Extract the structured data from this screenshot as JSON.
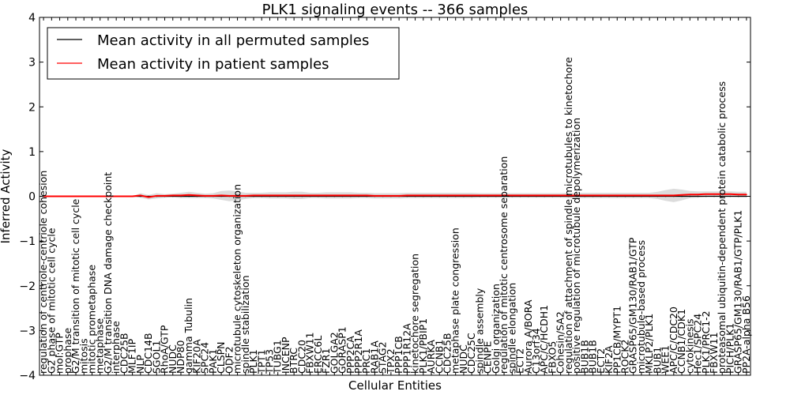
{
  "chart_data": {
    "type": "line",
    "title": "PLK1 signaling events -- 366 samples",
    "xlabel": "Cellular Entities",
    "ylabel": "Inferred Activity",
    "ylim": [
      -4,
      4
    ],
    "yticks": [
      4,
      3,
      2,
      1,
      0,
      -1,
      -2,
      -3,
      -4
    ],
    "grid": false,
    "legend": {
      "position": "top-left",
      "entries": [
        {
          "label": "Mean activity in all permuted samples",
          "color": "#000000"
        },
        {
          "label": "Mean activity in patient samples",
          "color": "#ff0000"
        }
      ]
    },
    "categories": [
      "regulation of centriole-centriole cohesion",
      "G2 phase of mitotic cell cycle",
      "mol:GTP",
      "prophase",
      "G2/M transition of mitotic cell cycle",
      "mitosis",
      "mitotic prometaphase",
      "metaphase",
      "G2/M transition DNA damage checkpoint",
      "interphase",
      "CDC25B",
      "MLF1IP",
      "NLP",
      "CDC14B",
      "SGOL1",
      "RhoA/GTP",
      "NUDC",
      "NDP80",
      "gamma Tubulin",
      "KIF20A",
      "SPC24",
      "PAK1",
      "CLSPN",
      "ODF2",
      "microtubule cytoskeleton organization",
      "spindle stabilization",
      "PLK1",
      "TPT1",
      "TP53",
      "TUBG1",
      "INCENP",
      "BTRC",
      "CDC20",
      "FBXW11",
      "ERCC6L",
      "FZR1",
      "GOLGA2",
      "GORASP1",
      "PPP2CA",
      "PPP2R1A",
      "PRC1",
      "RAB1A",
      "STAG2",
      "TPX2",
      "PPP1CB",
      "PPP1R12A",
      "kinetochore segregation",
      "PLK1/PBIP1",
      "AURKA",
      "CCNB1",
      "CDC25B",
      "metaphase plate congression",
      "NUDC",
      "CDC25C",
      "spindle assembly",
      "CENPE",
      "Golgi organization",
      "regulation of mitotic centrosome separation",
      "spindle elongation",
      "ECT2",
      "Aurora A/BORA",
      "C13orf34",
      "APC/C/HCDH1",
      "FBXO5",
      "Cohesin/SA2",
      "regulation of attachment of spindle microtubules to kinetochore",
      "positive regulation of microtubule depolymerization",
      "BUB1B",
      "BUB1B",
      "ECT2",
      "KIF2A",
      "PP1CB/MYPT1",
      "ROCK2",
      "GRASP65/GM130/RAB1/GTP",
      "microtubule-based process",
      "MKLP2/PLK1",
      "BUB1",
      "WEE1",
      "APC/C/CDC20",
      "CCNB1/CDK1",
      "cytokinesis",
      "Hec1/SPC24",
      "PLK1/PRC1-2",
      "FBXW11",
      "proteasomal ubiquitin-dependent protein catabolic process",
      "PICH/PLK1",
      "GRASP65/GM130/RAB1/GTP/PLK1",
      "PP2A-alpha B56"
    ],
    "series": [
      {
        "name": "Mean activity in all permuted samples",
        "color": "#000000",
        "values": [
          0,
          0,
          0,
          0,
          0,
          0,
          0,
          0,
          0,
          0,
          0,
          0,
          0,
          0,
          0,
          0,
          0,
          0,
          0,
          0,
          0,
          0,
          0,
          0,
          0,
          0,
          0,
          0,
          0,
          0,
          0,
          0,
          0,
          0,
          0,
          0,
          0,
          0,
          0,
          0,
          0,
          0,
          0,
          0,
          0,
          0,
          0,
          0,
          0,
          0,
          0,
          0,
          0,
          0,
          0,
          0,
          0,
          0,
          0,
          0,
          0,
          0,
          0,
          0,
          0,
          0,
          0,
          0,
          0,
          0,
          0,
          0,
          0,
          0,
          0,
          0,
          0,
          0,
          0,
          0,
          0,
          0,
          0,
          0,
          0,
          0,
          0,
          0
        ]
      },
      {
        "name": "Mean activity in patient samples",
        "color": "#ff0000",
        "values": [
          0,
          0,
          0,
          0,
          0,
          0,
          0,
          0,
          0,
          0,
          0,
          0,
          0.02,
          -0.02,
          0.01,
          0.01,
          0.02,
          0.02,
          0.03,
          0.02,
          0.01,
          0.01,
          0.02,
          0.01,
          0.01,
          0.01,
          0.02,
          0.02,
          0.02,
          0.02,
          0.02,
          0.02,
          0.02,
          0.02,
          0.02,
          0.02,
          0.02,
          0.02,
          0.02,
          0.02,
          0.02,
          0.01,
          0.01,
          0.01,
          0.01,
          0.02,
          0.02,
          0.02,
          0.02,
          0.02,
          0.02,
          0.02,
          0.02,
          0.02,
          0.02,
          0.02,
          0.02,
          0.02,
          0.02,
          0.02,
          0.02,
          0.02,
          0.02,
          0.02,
          0.02,
          0.02,
          0.02,
          0.02,
          0.02,
          0.02,
          0.02,
          0.02,
          0.02,
          0.02,
          0.02,
          0.02,
          0.02,
          0.02,
          0.02,
          0.03,
          0.04,
          0.04,
          0.05,
          0.05,
          0.05,
          0.05,
          0.04,
          0.04
        ]
      }
    ],
    "band_halfwidth": [
      0,
      0,
      0,
      0,
      0,
      0,
      0,
      0,
      0,
      0,
      0,
      0,
      0.05,
      0.05,
      0.06,
      0.04,
      0.04,
      0.06,
      0.07,
      0.06,
      0.05,
      0.06,
      0.1,
      0.12,
      0.1,
      0.07,
      0.06,
      0.06,
      0.07,
      0.07,
      0.07,
      0.08,
      0.08,
      0.06,
      0.06,
      0.07,
      0.07,
      0.07,
      0.07,
      0.06,
      0.06,
      0.06,
      0.06,
      0.06,
      0.06,
      0.06,
      0.06,
      0.06,
      0.06,
      0.06,
      0.06,
      0.06,
      0.06,
      0.06,
      0.05,
      0.05,
      0.05,
      0.05,
      0.05,
      0.05,
      0.05,
      0.05,
      0.05,
      0.05,
      0.05,
      0.06,
      0.06,
      0.06,
      0.06,
      0.06,
      0.06,
      0.06,
      0.06,
      0.06,
      0.06,
      0.06,
      0.08,
      0.12,
      0.15,
      0.12,
      0.08,
      0.07,
      0.06,
      0.06,
      0.06,
      0.06,
      0.06,
      0.06
    ]
  }
}
